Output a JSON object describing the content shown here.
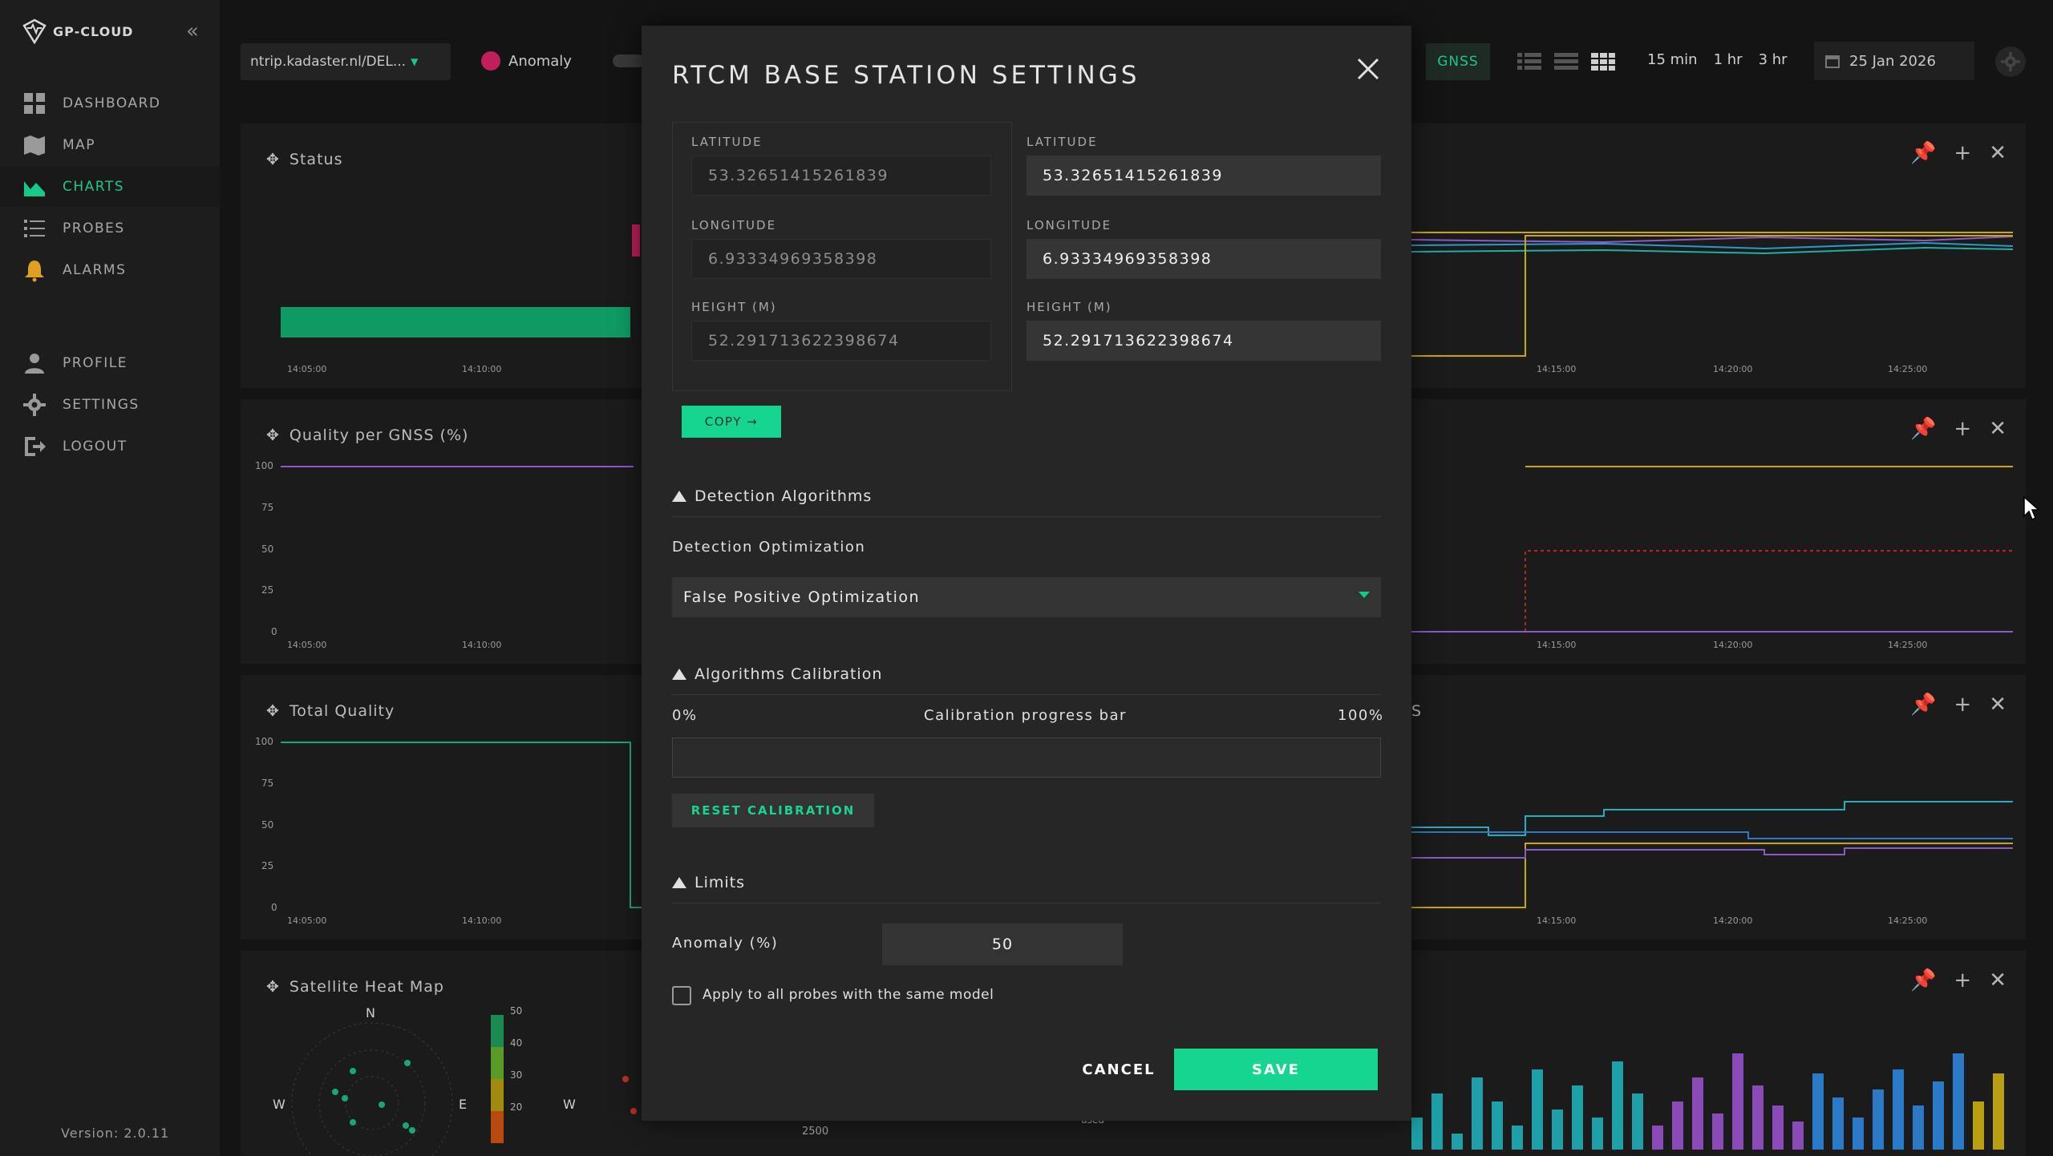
{
  "app": {
    "logo_text": "GP-CLOUD",
    "version": "Version: 2.0.11"
  },
  "sidebar": {
    "items": [
      {
        "label": "DASHBOARD",
        "icon": "dashboard-icon",
        "active": false
      },
      {
        "label": "MAP",
        "icon": "map-icon",
        "active": false
      },
      {
        "label": "CHARTS",
        "icon": "charts-icon",
        "active": true
      },
      {
        "label": "PROBES",
        "icon": "probes-icon",
        "active": false
      },
      {
        "label": "ALARMS",
        "icon": "alarm-icon",
        "active": false
      },
      {
        "label": "PROFILE",
        "icon": "profile-icon",
        "active": false
      },
      {
        "label": "SETTINGS",
        "icon": "settings-icon",
        "active": false
      },
      {
        "label": "LOGOUT",
        "icon": "logout-icon",
        "active": false
      }
    ]
  },
  "topbar": {
    "ntrip_select": "ntrip.kadaster.nl/DEL...",
    "anomaly_label": "Anomaly",
    "gnss_button": "GNSS",
    "time_options": [
      "15 min",
      "1 hr",
      "3 hr"
    ],
    "date": "25 Jan 2026"
  },
  "panels": [
    {
      "title": "Status",
      "y_ticks": [],
      "x_ticks": [
        "14:05:00",
        "14:10:00",
        "14:15:00",
        "14:20:00",
        "14:25:00"
      ]
    },
    {
      "title": "Quality per GNSS (%)",
      "y_ticks": [
        "100",
        "75",
        "50",
        "25",
        "0"
      ],
      "x_ticks": [
        "14:05:00",
        "14:10:00",
        "14:15:00",
        "14:20:00",
        "14:25:00"
      ]
    },
    {
      "title": "Total Quality",
      "title_right_fragment": "S",
      "y_ticks": [
        "100",
        "75",
        "50",
        "25",
        "0"
      ],
      "x_ticks": [
        "14:05:00",
        "14:10:00",
        "14:15:00",
        "14:20:00",
        "14:25:00"
      ]
    },
    {
      "title": "Satellite Heat Map",
      "compass": [
        "N",
        "W",
        "E",
        "W"
      ],
      "legend": [
        "50",
        "40",
        "30",
        "20"
      ],
      "bottom_labels": [
        "2500",
        "used"
      ]
    }
  ],
  "modal": {
    "title": "RTCM BASE STATION SETTINGS",
    "left": {
      "latitude_label": "LATITUDE",
      "latitude": "53.32651415261839",
      "longitude_label": "LONGITUDE",
      "longitude": "6.93334969358398",
      "height_label": "HEIGHT (M)",
      "height": "52.291713622398674"
    },
    "right": {
      "latitude_label": "LATITUDE",
      "latitude": "53.32651415261839",
      "longitude_label": "LONGITUDE",
      "longitude": "6.93334969358398",
      "height_label": "HEIGHT (M)",
      "height": "52.291713622398674"
    },
    "copy_button": "COPY →",
    "detection_section": "Detection Algorithms",
    "detection_opt_label": "Detection Optimization",
    "detection_opt_value": "False Positive Optimization",
    "calibration_section": "Algorithms Calibration",
    "calibration_min": "0%",
    "calibration_label": "Calibration progress bar",
    "calibration_max": "100%",
    "calibration_progress": 0,
    "reset_button": "RESET CALIBRATION",
    "limits_section": "Limits",
    "anomaly_label": "Anomaly (%)",
    "anomaly_value": "50",
    "apply_all_label": "Apply to all probes with the same model",
    "cancel_button": "CANCEL",
    "save_button": "SAVE"
  },
  "colors": {
    "accent": "#16d58f",
    "status_bar": "#0f9a63",
    "anomaly_dot": "#c01e5c"
  }
}
